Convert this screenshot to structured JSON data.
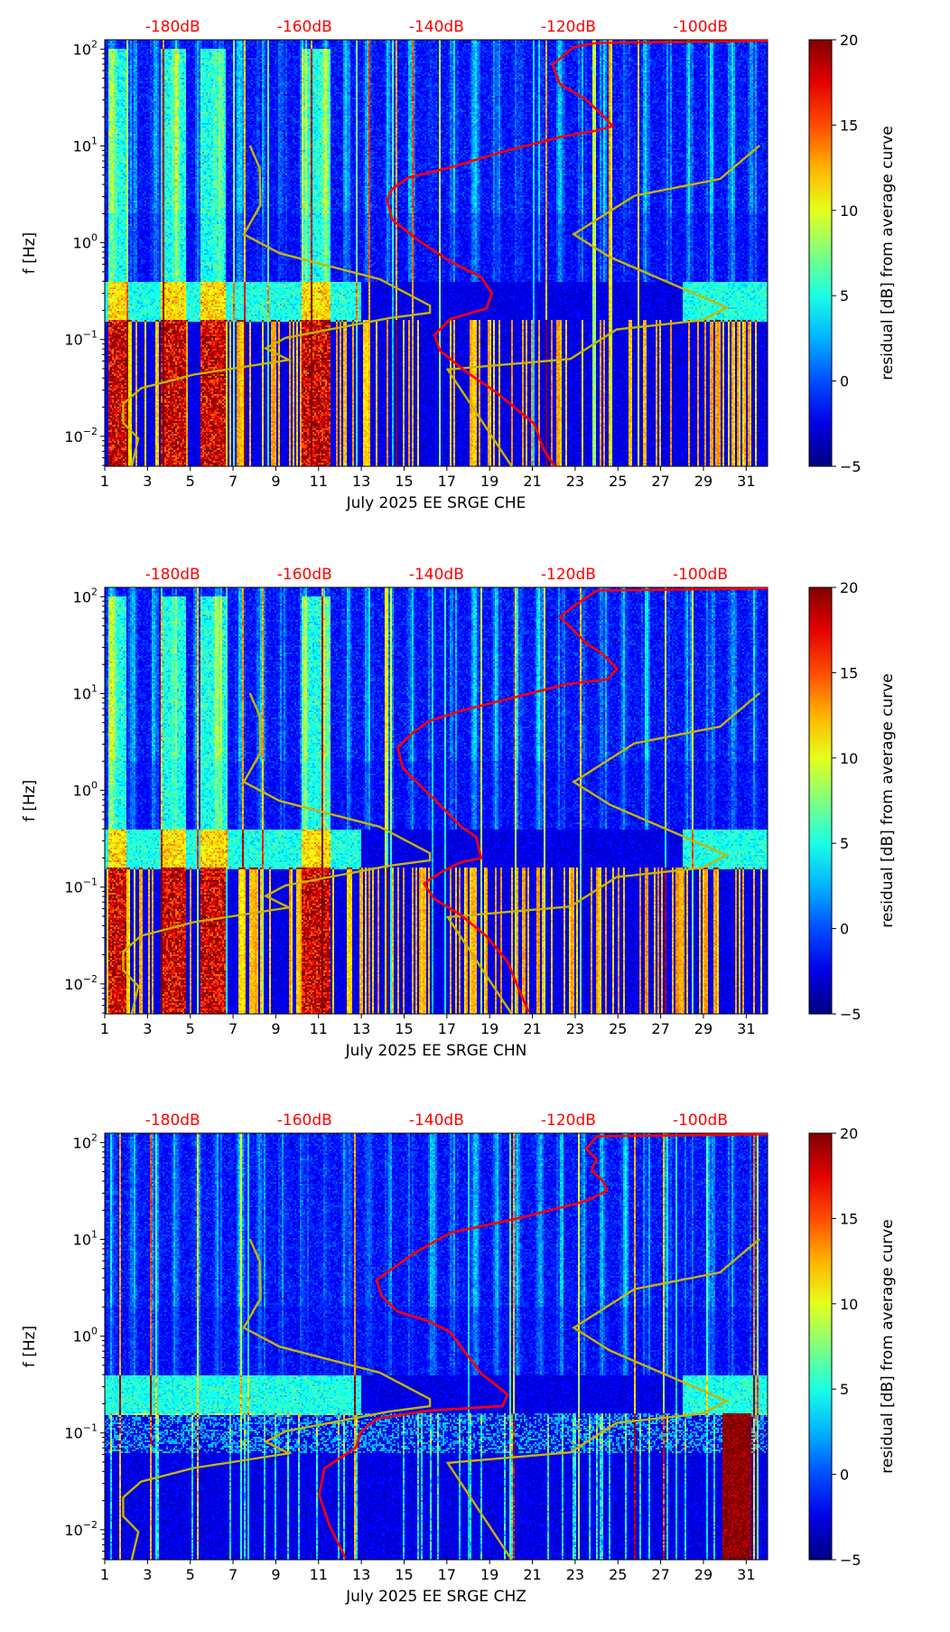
{
  "chart_data": [
    {
      "type": "heatmap",
      "title": "",
      "xlabel": "July 2025 EE SRGE  CHE",
      "ylabel": "f [Hz]",
      "colorbar_label": "residual [dB] from average curve",
      "xlim": [
        1,
        32
      ],
      "ylim": [
        0.0049,
        125
      ],
      "yscale": "log",
      "top_axis_db_range": [
        -190.3,
        -89.8
      ],
      "clim": [
        -5,
        20
      ],
      "strong_low_freq_days": [
        [
          1.2,
          2.0
        ],
        [
          3.6,
          4.8
        ],
        [
          5.5,
          6.7
        ],
        [
          10.2,
          11.6
        ]
      ],
      "microseism_band_hz": [
        0.15,
        0.35
      ],
      "red_curve": [
        [
          122,
          -89.5
        ],
        [
          116,
          -115.7
        ],
        [
          105,
          -119.2
        ],
        [
          69,
          -122.4
        ],
        [
          44,
          -121.3
        ],
        [
          30,
          -117.3
        ],
        [
          21,
          -114.9
        ],
        [
          16,
          -113.3
        ],
        [
          14.4,
          -115.7
        ],
        [
          12.7,
          -120.5
        ],
        [
          8.7,
          -130
        ],
        [
          6.0,
          -137.9
        ],
        [
          4.7,
          -144.3
        ],
        [
          3.6,
          -146.7
        ],
        [
          2.8,
          -147.5
        ],
        [
          1.73,
          -146.7
        ],
        [
          1.05,
          -142.7
        ],
        [
          0.64,
          -137.9
        ],
        [
          0.44,
          -133.2
        ],
        [
          0.3,
          -131.6
        ],
        [
          0.21,
          -132.4
        ],
        [
          0.163,
          -137.9
        ],
        [
          0.112,
          -140.3
        ],
        [
          0.077,
          -139.5
        ],
        [
          0.047,
          -135.6
        ],
        [
          0.028,
          -130.8
        ],
        [
          0.0135,
          -125.2
        ],
        [
          0.0072,
          -123.7
        ],
        [
          0.0049,
          -122.1
        ]
      ]
    },
    {
      "type": "heatmap",
      "xlabel": "July 2025 EE SRGE  CHN",
      "ylabel": "f [Hz]",
      "colorbar_label": "residual [dB] from average curve",
      "xlim": [
        1,
        32
      ],
      "ylim": [
        0.0049,
        125
      ],
      "yscale": "log",
      "top_axis_db_range": [
        -190.3,
        -89.8
      ],
      "clim": [
        -5,
        20
      ],
      "strong_low_freq_days": [
        [
          1.2,
          2.0
        ],
        [
          3.6,
          4.8
        ],
        [
          5.5,
          6.7
        ],
        [
          10.2,
          11.6
        ]
      ],
      "microseism_band_hz": [
        0.15,
        0.35
      ],
      "red_curve": [
        [
          122,
          -89.5
        ],
        [
          116,
          -115.7
        ],
        [
          80,
          -119.2
        ],
        [
          62,
          -121.3
        ],
        [
          49,
          -119.7
        ],
        [
          33,
          -117.3
        ],
        [
          26,
          -114.9
        ],
        [
          18,
          -112.6
        ],
        [
          14,
          -114.1
        ],
        [
          12.4,
          -120.5
        ],
        [
          8.5,
          -130
        ],
        [
          6.6,
          -136.4
        ],
        [
          5.2,
          -141.1
        ],
        [
          4.0,
          -143.5
        ],
        [
          2.77,
          -145.9
        ],
        [
          1.69,
          -145.1
        ],
        [
          1.16,
          -142.7
        ],
        [
          0.71,
          -139.5
        ],
        [
          0.43,
          -136.4
        ],
        [
          0.33,
          -134
        ],
        [
          0.2,
          -133.2
        ],
        [
          0.18,
          -136.4
        ],
        [
          0.14,
          -139.5
        ],
        [
          0.109,
          -141.9
        ],
        [
          0.075,
          -140.3
        ],
        [
          0.052,
          -136.4
        ],
        [
          0.031,
          -132.4
        ],
        [
          0.0169,
          -129.2
        ],
        [
          0.0091,
          -127.6
        ],
        [
          0.0051,
          -126
        ]
      ]
    },
    {
      "type": "heatmap",
      "xlabel": "July 2025 EE SRGE  CHZ",
      "ylabel": "f [Hz]",
      "colorbar_label": "residual [dB] from average curve",
      "xlim": [
        1,
        32
      ],
      "ylim": [
        0.0049,
        125
      ],
      "yscale": "log",
      "top_axis_db_range": [
        -190.3,
        -89.8
      ],
      "clim": [
        -5,
        20
      ],
      "strong_low_freq_days": [
        [
          29.9,
          31.2
        ]
      ],
      "microseism_band_hz": [
        0.15,
        0.35
      ],
      "red_curve": [
        [
          122,
          -89.5
        ],
        [
          116,
          -115.7
        ],
        [
          86,
          -117.3
        ],
        [
          67,
          -115.7
        ],
        [
          52,
          -116.5
        ],
        [
          41,
          -114.9
        ],
        [
          32,
          -114.1
        ],
        [
          25,
          -117.3
        ],
        [
          17,
          -126.8
        ],
        [
          11.7,
          -137.9
        ],
        [
          7.1,
          -143.5
        ],
        [
          3.8,
          -149.1
        ],
        [
          2.6,
          -148.3
        ],
        [
          1.8,
          -145.9
        ],
        [
          1.42,
          -141.1
        ],
        [
          1.1,
          -137.9
        ],
        [
          0.67,
          -135.6
        ],
        [
          0.41,
          -133.2
        ],
        [
          0.25,
          -129.2
        ],
        [
          0.19,
          -130
        ],
        [
          0.17,
          -141.1
        ],
        [
          0.14,
          -149.1
        ],
        [
          0.104,
          -151.4
        ],
        [
          0.071,
          -152.2
        ],
        [
          0.043,
          -157
        ],
        [
          0.023,
          -157.8
        ],
        [
          0.011,
          -156.2
        ],
        [
          0.0051,
          -153.8
        ]
      ]
    }
  ],
  "noise_model_curves": {
    "color": "#c8b400",
    "low": [
      [
        10.1,
        -168.3
      ],
      [
        5.9,
        -166.8
      ],
      [
        2.45,
        -166.7
      ],
      [
        1.22,
        -169.2
      ],
      [
        0.78,
        -163.8
      ],
      [
        0.42,
        -148.6
      ],
      [
        0.224,
        -141
      ],
      [
        0.189,
        -141
      ],
      [
        0.167,
        -147.1
      ],
      [
        0.104,
        -162.9
      ],
      [
        0.081,
        -165.9
      ],
      [
        0.0615,
        -162.4
      ],
      [
        0.0434,
        -176.8
      ],
      [
        0.0314,
        -184.8
      ],
      [
        0.0216,
        -187.5
      ],
      [
        0.0138,
        -187.5
      ],
      [
        0.0095,
        -185.2
      ],
      [
        0.0049,
        -186.2
      ]
    ],
    "high": [
      [
        10.1,
        -91
      ],
      [
        4.56,
        -97
      ],
      [
        3.06,
        -110
      ],
      [
        1.22,
        -119.2
      ],
      [
        0.71,
        -113.7
      ],
      [
        0.214,
        -96
      ],
      [
        0.158,
        -99.7
      ],
      [
        0.127,
        -112.7
      ],
      [
        0.063,
        -119.7
      ],
      [
        0.049,
        -138.3
      ],
      [
        0.0049,
        -128.6
      ]
    ]
  },
  "colors": {
    "red_curve": "#ff0000",
    "top_labels": "#ff0000"
  },
  "axes": {
    "x_ticks": [
      "1",
      "3",
      "5",
      "7",
      "9",
      "11",
      "13",
      "15",
      "17",
      "19",
      "21",
      "23",
      "25",
      "27",
      "29",
      "31"
    ],
    "y_ticks": [
      {
        "m": "10",
        "e": "2",
        "v": 100
      },
      {
        "m": "10",
        "e": "1",
        "v": 10
      },
      {
        "m": "10",
        "e": "0",
        "v": 1
      },
      {
        "m": "10",
        "e": "−1",
        "v": 0.1
      },
      {
        "m": "10",
        "e": "−2",
        "v": 0.01
      }
    ],
    "top_db_ticks": [
      {
        "label": "-180dB",
        "v": -180
      },
      {
        "label": "-160dB",
        "v": -160
      },
      {
        "label": "-140dB",
        "v": -140
      },
      {
        "label": "-120dB",
        "v": -120
      },
      {
        "label": "-100dB",
        "v": -100
      }
    ],
    "colorbar_ticks": [
      {
        "label": "20",
        "v": 20
      },
      {
        "label": "15",
        "v": 15
      },
      {
        "label": "10",
        "v": 10
      },
      {
        "label": "5",
        "v": 5
      },
      {
        "label": "0",
        "v": 0
      },
      {
        "label": "−5",
        "v": -5
      }
    ]
  }
}
